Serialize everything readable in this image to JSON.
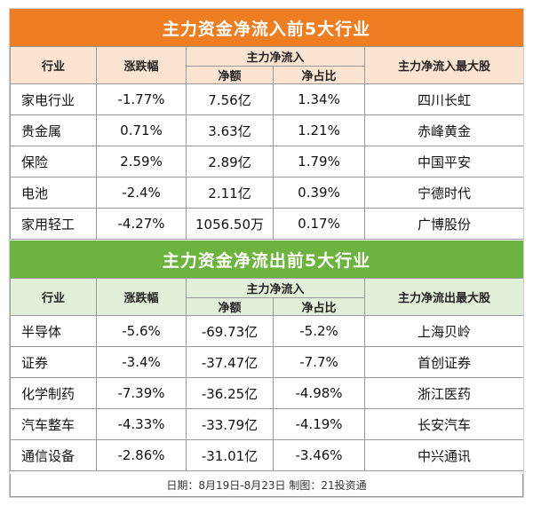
{
  "inflow": {
    "title": "主力资金净流入前5大行业",
    "headers": {
      "industry": "行业",
      "change": "涨跌幅",
      "group": "主力净流入",
      "net": "净额",
      "ratio": "净占比",
      "top_stock": "主力净流入最大股"
    },
    "rows": [
      {
        "industry": "家电行业",
        "change": "-1.77%",
        "net": "7.56亿",
        "ratio": "1.34%",
        "stock": "四川长虹"
      },
      {
        "industry": "贵金属",
        "change": "0.71%",
        "net": "3.63亿",
        "ratio": "1.21%",
        "stock": "赤峰黄金"
      },
      {
        "industry": "保险",
        "change": "2.59%",
        "net": "2.89亿",
        "ratio": "1.79%",
        "stock": "中国平安"
      },
      {
        "industry": "电池",
        "change": "-2.4%",
        "net": "2.11亿",
        "ratio": "0.39%",
        "stock": "宁德时代"
      },
      {
        "industry": "家用轻工",
        "change": "-4.27%",
        "net": "1056.50万",
        "ratio": "0.17%",
        "stock": "广博股份"
      }
    ]
  },
  "outflow": {
    "title": "主力资金净流出前5大行业",
    "headers": {
      "industry": "行业",
      "change": "涨跌幅",
      "group": "主力净流入",
      "net": "净额",
      "ratio": "净占比",
      "top_stock": "主力净流出最大股"
    },
    "rows": [
      {
        "industry": "半导体",
        "change": "-5.6%",
        "net": "-69.73亿",
        "ratio": "-5.2%",
        "stock": "上海贝岭"
      },
      {
        "industry": "证券",
        "change": "-3.4%",
        "net": "-37.47亿",
        "ratio": "-7.7%",
        "stock": "首创证券"
      },
      {
        "industry": "化学制药",
        "change": "-7.39%",
        "net": "-36.25亿",
        "ratio": "-4.98%",
        "stock": "浙江医药"
      },
      {
        "industry": "汽车整车",
        "change": "-4.33%",
        "net": "-33.79亿",
        "ratio": "-4.19%",
        "stock": "长安汽车"
      },
      {
        "industry": "通信设备",
        "change": "-2.86%",
        "net": "-31.01亿",
        "ratio": "-3.46%",
        "stock": "中兴通讯"
      }
    ]
  },
  "footer": "日期：8月19日-8月23日  制图：21投资通",
  "colors": {
    "inflow_banner": "#ef7d22",
    "outflow_banner": "#6db33f",
    "inflow_header_bg": "#fce4d2",
    "outflow_header_bg": "#e3f0d9"
  }
}
